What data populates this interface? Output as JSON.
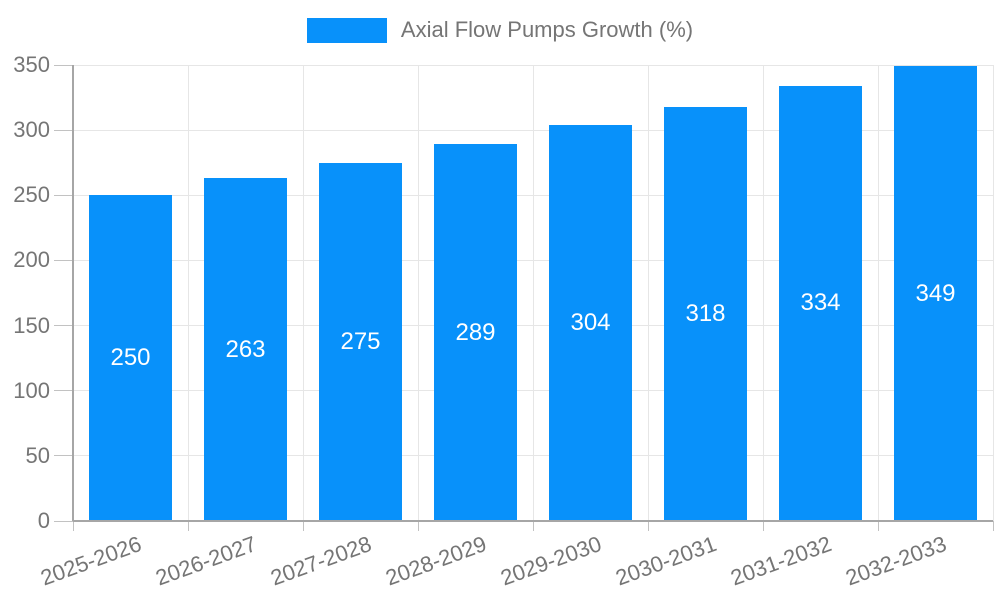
{
  "legend": {
    "label": "Axial Flow Pumps Growth (%)"
  },
  "chart_data": {
    "type": "bar",
    "title": "",
    "xlabel": "",
    "ylabel": "",
    "categories": [
      "2025-2026",
      "2026-2027",
      "2027-2028",
      "2028-2029",
      "2029-2030",
      "2030-2031",
      "2031-2032",
      "2032-2033"
    ],
    "values": [
      250,
      263,
      275,
      289,
      304,
      318,
      334,
      349
    ],
    "series_name": "Axial Flow Pumps Growth (%)",
    "y_ticks": [
      0,
      50,
      100,
      150,
      200,
      250,
      300,
      350
    ],
    "ylim": [
      0,
      350
    ],
    "grid": true,
    "legend_position": "top-center",
    "x_label_rotation_deg": -20,
    "colors": {
      "bar": "#0891fa",
      "value_label": "#ffffff",
      "axis_text": "#757575",
      "grid": "#e6e6e6",
      "tick": "#c2c2c2",
      "axis_line": "#a6a6a6",
      "background": "#ffffff"
    }
  }
}
